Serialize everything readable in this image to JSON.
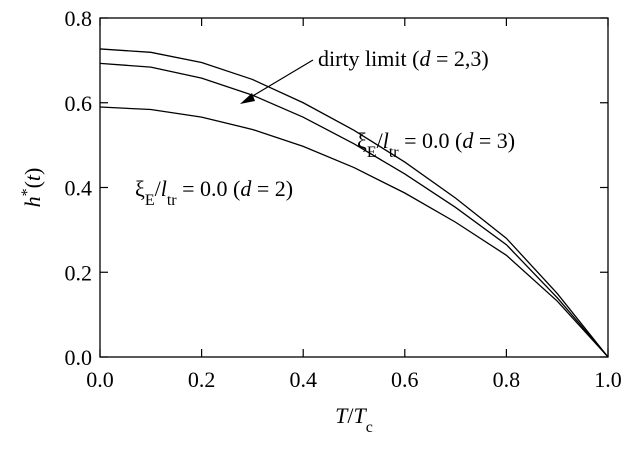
{
  "chart_data": {
    "type": "line",
    "x": [
      0.0,
      0.1,
      0.2,
      0.3,
      0.4,
      0.5,
      0.6,
      0.7,
      0.8,
      0.9,
      1.0
    ],
    "series": [
      {
        "color": "#000000",
        "values": [
          0.727,
          0.719,
          0.695,
          0.655,
          0.6,
          0.535,
          0.46,
          0.375,
          0.28,
          0.15,
          0.0
        ]
      },
      {
        "color": "#000000",
        "values": [
          0.693,
          0.684,
          0.658,
          0.618,
          0.566,
          0.503,
          0.432,
          0.353,
          0.265,
          0.14,
          0.0
        ]
      },
      {
        "color": "#000000",
        "values": [
          0.59,
          0.584,
          0.566,
          0.537,
          0.497,
          0.447,
          0.387,
          0.318,
          0.24,
          0.132,
          0.0
        ]
      }
    ],
    "xlabel": [
      "T",
      "/",
      "T",
      "c"
    ],
    "ylabel": [
      "h",
      "*",
      "(",
      "t",
      ")"
    ],
    "annotations": [
      [
        "dirty limit (",
        "d",
        " = 2,3)"
      ],
      [
        "ξ",
        "E",
        "/",
        "l",
        "tr",
        " = 0.0 (",
        "d",
        " = 3)"
      ],
      [
        "ξ",
        "E",
        "/",
        "l",
        "tr",
        " = 0.0 (",
        "d",
        " = 2)"
      ]
    ],
    "xlim": [
      0.0,
      1.0
    ],
    "ylim": [
      0.0,
      0.8
    ],
    "xticks": [
      {
        "value": 0,
        "label": "0.0"
      },
      {
        "value": 0.2,
        "label": "0.2"
      },
      {
        "value": 0.4,
        "label": "0.4"
      },
      {
        "value": 0.6,
        "label": "0.6"
      },
      {
        "value": 0.8,
        "label": "0.8"
      },
      {
        "value": 1,
        "label": "1.0"
      }
    ],
    "yticks": [
      {
        "value": 0,
        "label": "0.0"
      },
      {
        "value": 0.2,
        "label": "0.2"
      },
      {
        "value": 0.4,
        "label": "0.4"
      },
      {
        "value": 0.6,
        "label": "0.6"
      },
      {
        "value": 0.8,
        "label": "0.8"
      }
    ],
    "grid": false
  }
}
